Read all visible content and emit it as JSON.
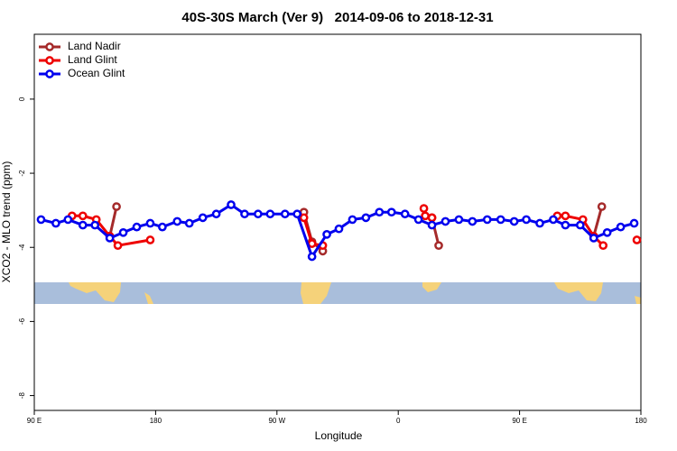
{
  "chart_data": {
    "type": "line",
    "title": "40S-30S March (Ver 9)   2014-09-06 to 2018-12-31",
    "x_label": "Longitude",
    "y_label": "XCO2 - MLO trend (ppm)",
    "xlim": [
      90,
      540
    ],
    "ylim": [
      1.75,
      -8.4
    ],
    "xticks": [
      {
        "value": 90,
        "label": "90 E"
      },
      {
        "value": 180,
        "label": "180"
      },
      {
        "value": 270,
        "label": "90 W"
      },
      {
        "value": 360,
        "label": "0"
      },
      {
        "value": 450,
        "label": "90 E"
      },
      {
        "value": 540,
        "label": "180"
      }
    ],
    "yticks": [
      0,
      -2,
      -4,
      -6,
      -8
    ],
    "legend": "top-left",
    "series": [
      {
        "name": "Land Nadir",
        "color": "#a52a2a",
        "x": [
          146,
          151,
          null,
          290,
          296,
          304,
          null,
          385,
          390,
          null,
          505,
          511
        ],
        "values": [
          -3.7,
          -2.9,
          null,
          -3.05,
          -3.85,
          -4.1,
          null,
          -3.2,
          -3.95,
          null,
          -3.7,
          -2.9
        ]
      },
      {
        "name": "Land Glint",
        "color": "#ee0000",
        "x": [
          118,
          126,
          136,
          146,
          152,
          176,
          null,
          290,
          296,
          304,
          null,
          379,
          380,
          385,
          null,
          478,
          484,
          497,
          505,
          512,
          null,
          537
        ],
        "values": [
          -3.15,
          -3.15,
          -3.25,
          -3.7,
          -3.95,
          -3.8,
          null,
          -3.2,
          -3.9,
          -3.95,
          null,
          -2.95,
          -3.15,
          -3.2,
          null,
          -3.15,
          -3.15,
          -3.25,
          -3.7,
          -3.95,
          null,
          -3.8
        ]
      },
      {
        "name": "Ocean Glint",
        "color": "#0000ee",
        "x": [
          95,
          106,
          115,
          126,
          135,
          146,
          156,
          166,
          176,
          185,
          196,
          205,
          215,
          225,
          236,
          246,
          256,
          265,
          276,
          285,
          296,
          307,
          316,
          326,
          336,
          346,
          355,
          365,
          375,
          385,
          395,
          405,
          415,
          426,
          436,
          446,
          455,
          465,
          475,
          484,
          495,
          505,
          515,
          525,
          535
        ],
        "values": [
          -3.25,
          -3.35,
          -3.25,
          -3.4,
          -3.4,
          -3.75,
          -3.6,
          -3.45,
          -3.35,
          -3.45,
          -3.3,
          -3.35,
          -3.2,
          -3.1,
          -2.85,
          -3.1,
          -3.1,
          -3.1,
          -3.1,
          -3.1,
          -4.25,
          -3.65,
          -3.5,
          -3.25,
          -3.2,
          -3.05,
          -3.05,
          -3.1,
          -3.25,
          -3.4,
          -3.3,
          -3.25,
          -3.3,
          -3.25,
          -3.25,
          -3.3,
          -3.25,
          -3.35,
          -3.25,
          -3.4,
          -3.4,
          -3.75,
          -3.6,
          -3.45,
          -3.35
        ]
      }
    ]
  }
}
